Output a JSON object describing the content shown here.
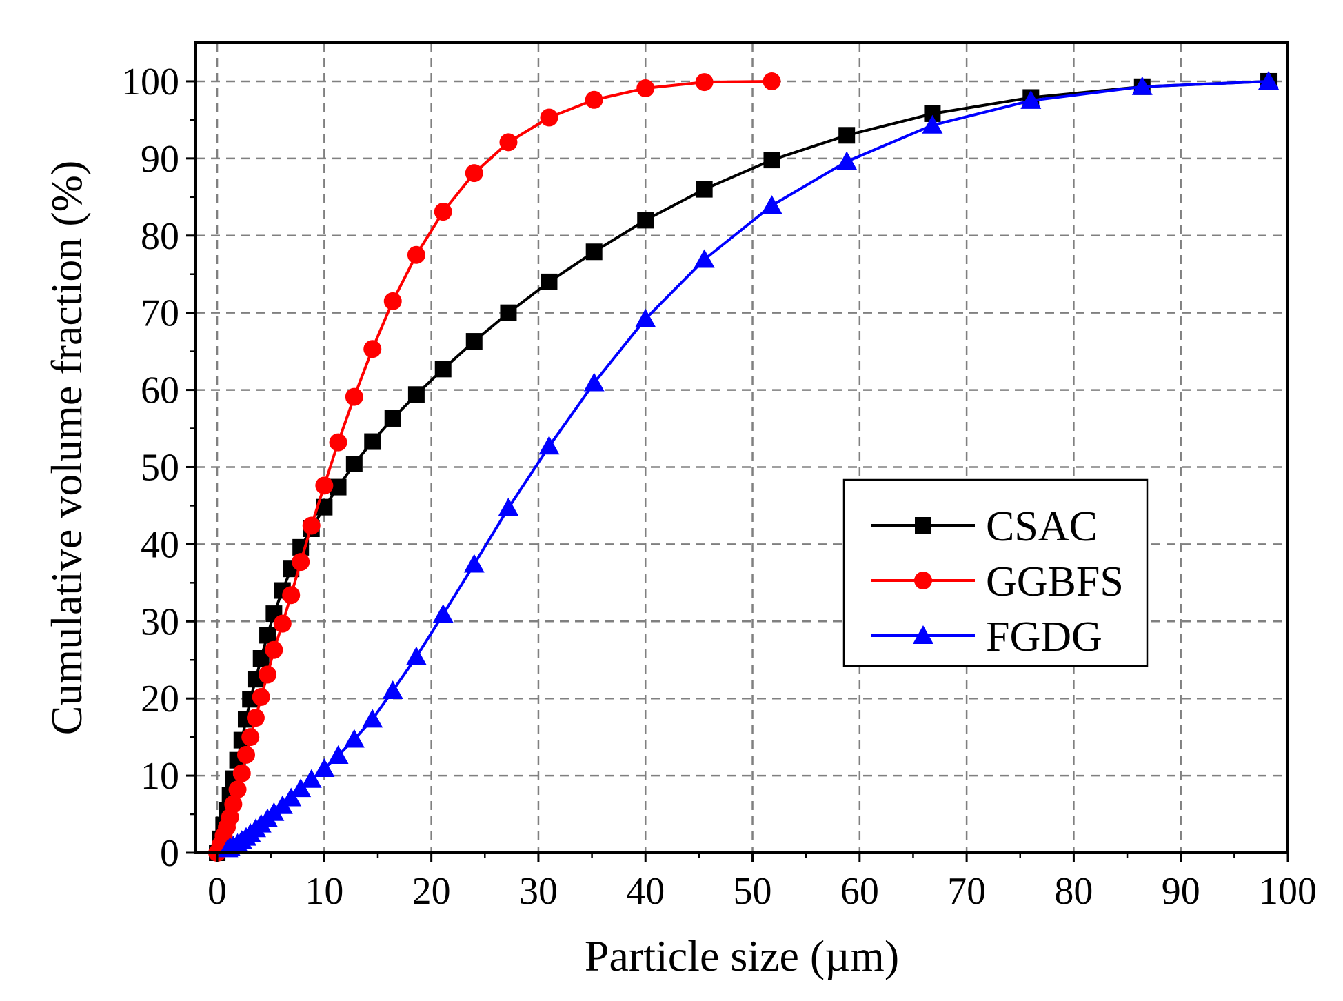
{
  "chart_data": {
    "type": "line",
    "title": "",
    "xlabel": "Particle size (µm)",
    "ylabel": "Cumulative volume fraction (%)",
    "xlim": [
      -2,
      100
    ],
    "ylim": [
      0,
      105
    ],
    "xticks": [
      0,
      10,
      20,
      30,
      40,
      50,
      60,
      70,
      80,
      90,
      100
    ],
    "yticks": [
      0,
      10,
      20,
      30,
      40,
      50,
      60,
      70,
      80,
      90,
      100
    ],
    "xtick_labels": [
      "0",
      "10",
      "20",
      "30",
      "40",
      "50",
      "60",
      "70",
      "80",
      "90",
      "100"
    ],
    "ytick_labels": [
      "0",
      "10",
      "20",
      "30",
      "40",
      "50",
      "60",
      "70",
      "80",
      "90",
      "100"
    ],
    "grid": true,
    "legend_position": "center-right",
    "series": [
      {
        "name": "CSAC",
        "color": "#000000",
        "marker": "square",
        "x": [
          0,
          0.3,
          0.6,
          0.9,
          1.2,
          1.5,
          1.9,
          2.3,
          2.7,
          3.1,
          3.6,
          4.1,
          4.7,
          5.3,
          6.1,
          6.9,
          7.8,
          8.8,
          10,
          11.3,
          12.8,
          14.5,
          16.4,
          18.6,
          21.1,
          24,
          27.2,
          31,
          35.2,
          40,
          45.5,
          51.8,
          58.8,
          66.8,
          76,
          86.4,
          98.2
        ],
        "y": [
          0,
          1.8,
          3.6,
          5.5,
          7.5,
          9.6,
          12,
          14.6,
          17.3,
          19.9,
          22.5,
          25.2,
          28.2,
          31,
          34,
          36.8,
          39.6,
          42,
          44.8,
          47.4,
          50.4,
          53.3,
          56.3,
          59.4,
          62.7,
          66.3,
          70,
          74,
          77.9,
          82,
          86,
          89.8,
          93,
          95.8,
          97.9,
          99.3,
          100
        ]
      },
      {
        "name": "GGBFS",
        "color": "#ff0000",
        "marker": "circle",
        "x": [
          0,
          0.3,
          0.6,
          0.9,
          1.2,
          1.5,
          1.9,
          2.3,
          2.7,
          3.1,
          3.6,
          4.1,
          4.7,
          5.3,
          6.1,
          6.9,
          7.8,
          8.8,
          10,
          11.3,
          12.8,
          14.5,
          16.4,
          18.6,
          21.1,
          24,
          27.2,
          31,
          35.2,
          40,
          45.5,
          51.8
        ],
        "y": [
          0,
          1,
          2.2,
          3.3,
          4.6,
          6.3,
          8.2,
          10.3,
          12.7,
          15,
          17.5,
          20.2,
          23.1,
          26.3,
          29.7,
          33.4,
          37.7,
          42.4,
          47.6,
          53.2,
          59.1,
          65.3,
          71.5,
          77.5,
          83.1,
          88.1,
          92.1,
          95.3,
          97.6,
          99.1,
          99.9,
          100
        ]
      },
      {
        "name": "FGDG",
        "color": "#0000ff",
        "marker": "triangle",
        "x": [
          1,
          1.2,
          1.5,
          1.9,
          2.3,
          2.7,
          3.1,
          3.6,
          4.1,
          4.7,
          5.3,
          6.1,
          6.9,
          7.8,
          8.8,
          10,
          11.3,
          12.8,
          14.5,
          16.4,
          18.6,
          21.1,
          24,
          27.2,
          31,
          35.2,
          40,
          45.5,
          51.8,
          58.8,
          66.8,
          76,
          86.4,
          98.2
        ],
        "y": [
          0.5,
          0.7,
          0.9,
          1.2,
          1.6,
          2,
          2.5,
          3.1,
          3.7,
          4.4,
          5.2,
          6.1,
          7.1,
          8.3,
          9.5,
          10.9,
          12.6,
          14.7,
          17.3,
          21,
          25.4,
          30.9,
          37.4,
          44.7,
          52.7,
          60.9,
          69.2,
          76.9,
          83.9,
          89.6,
          94.3,
          97.5,
          99.3,
          100
        ]
      }
    ]
  }
}
